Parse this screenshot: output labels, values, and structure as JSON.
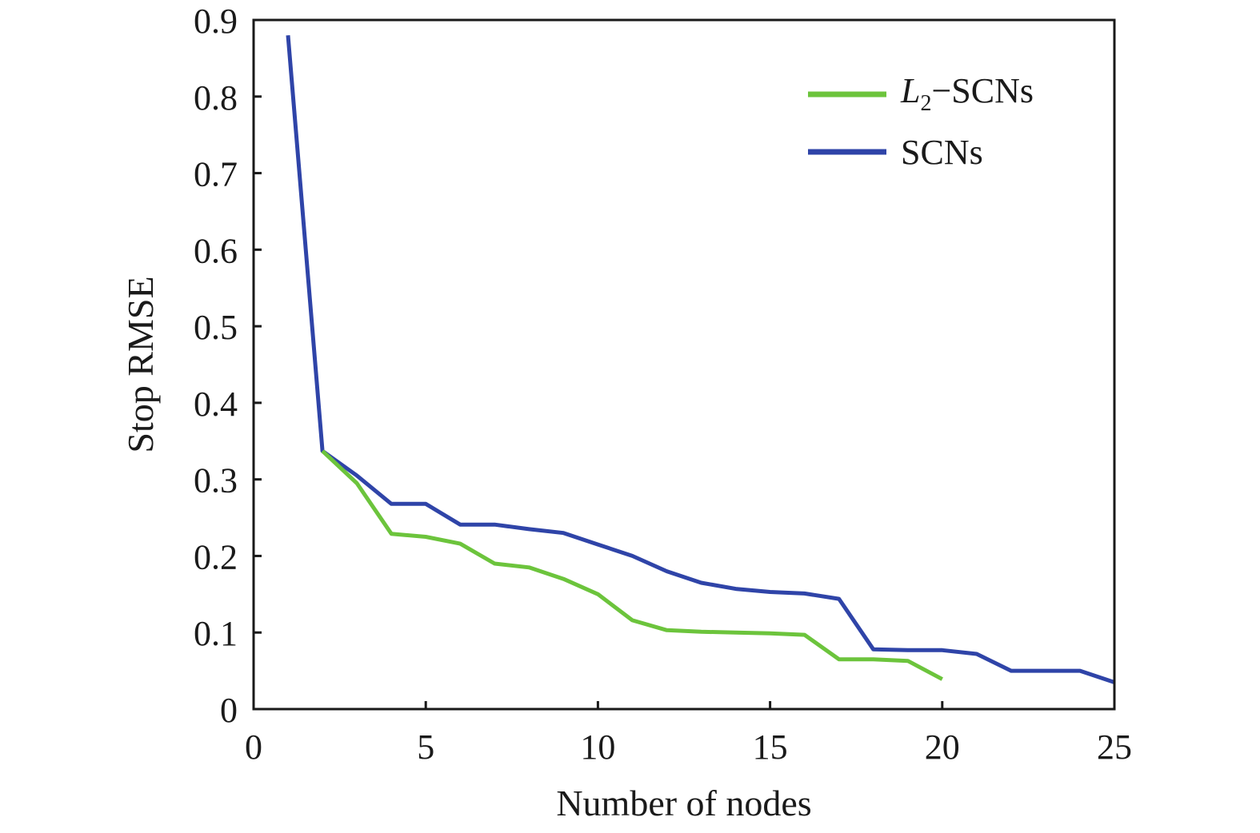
{
  "chart_data": {
    "type": "line",
    "title": "",
    "xlabel": "Number of nodes",
    "ylabel": "Stop RMSE",
    "xlim": [
      0,
      25
    ],
    "ylim": [
      0,
      0.9
    ],
    "xticks": [
      "0",
      "5",
      "10",
      "15",
      "20",
      "25"
    ],
    "yticks": [
      "0",
      "0.1",
      "0.2",
      "0.3",
      "0.4",
      "0.5",
      "0.6",
      "0.7",
      "0.8",
      "0.9"
    ],
    "grid": false,
    "legend_position": "top-right",
    "series": [
      {
        "name": "SCNs",
        "color": "#2f44a8",
        "x": [
          1,
          2,
          3,
          4,
          5,
          6,
          7,
          8,
          9,
          10,
          11,
          12,
          13,
          14,
          15,
          16,
          17,
          18,
          19,
          20,
          21,
          22,
          23,
          24,
          25
        ],
        "y": [
          0.88,
          0.337,
          0.305,
          0.268,
          0.268,
          0.241,
          0.241,
          0.235,
          0.23,
          0.215,
          0.2,
          0.18,
          0.165,
          0.157,
          0.153,
          0.151,
          0.144,
          0.078,
          0.077,
          0.077,
          0.072,
          0.05,
          0.05,
          0.05,
          0.035
        ]
      },
      {
        "name_prefix": "L",
        "name_sub": "2",
        "name_suffix": "−SCNs",
        "color": "#6cc43c",
        "x": [
          2,
          3,
          4,
          5,
          6,
          7,
          8,
          9,
          10,
          11,
          12,
          13,
          14,
          15,
          16,
          17,
          18,
          19,
          20
        ],
        "y": [
          0.337,
          0.295,
          0.229,
          0.225,
          0.216,
          0.19,
          0.185,
          0.17,
          0.15,
          0.116,
          0.103,
          0.101,
          0.1,
          0.099,
          0.097,
          0.065,
          0.065,
          0.063,
          0.039
        ]
      }
    ]
  }
}
